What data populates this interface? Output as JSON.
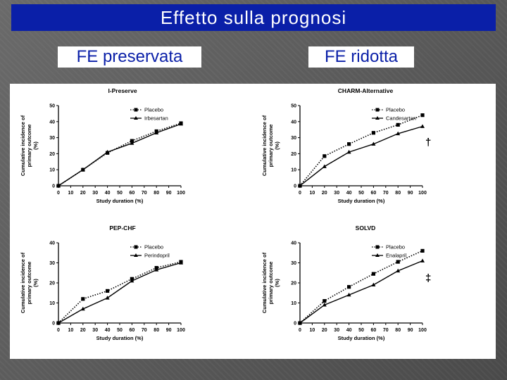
{
  "slide": {
    "title": "Effetto sulla prognosi",
    "left_label": "FE preservata",
    "right_label": "FE ridotta"
  },
  "colors": {
    "title_bg": "#0a1fa8",
    "title_text": "#ffffff",
    "label_text": "#0a1fa8"
  },
  "chart_data": [
    {
      "type": "line",
      "title": "I-Preserve",
      "xlabel": "Study duration (%)",
      "ylabel": [
        "Cumulative incidence of",
        "primary outcome",
        "(%)"
      ],
      "x": [
        0,
        20,
        40,
        60,
        80,
        100
      ],
      "x_ticks": [
        "0",
        "10",
        "20",
        "30",
        "40",
        "50",
        "60",
        "70",
        "80",
        "90",
        "100"
      ],
      "y_ticks": [
        "0",
        "10",
        "20",
        "30",
        "40",
        "50"
      ],
      "xlim": [
        0,
        100
      ],
      "ylim": [
        0,
        50
      ],
      "series": [
        {
          "name": "Placebo",
          "marker": "square",
          "dash": "dotted",
          "values": [
            0,
            10,
            20.5,
            28,
            34,
            39
          ]
        },
        {
          "name": "Irbesartan",
          "marker": "triangle",
          "dash": "solid",
          "values": [
            0,
            10,
            21,
            26.5,
            33,
            38.5
          ]
        }
      ],
      "legend": "top-right",
      "symbol": ""
    },
    {
      "type": "line",
      "title": "CHARM-Alternative",
      "xlabel": "Study duration (%)",
      "ylabel": [
        "Cumulative incidence of",
        "primary outcome",
        "(%)"
      ],
      "x": [
        0,
        20,
        40,
        60,
        80,
        100
      ],
      "x_ticks": [
        "0",
        "10",
        "20",
        "30",
        "40",
        "50",
        "60",
        "70",
        "80",
        "90",
        "100"
      ],
      "y_ticks": [
        "0",
        "10",
        "20",
        "30",
        "40",
        "50"
      ],
      "xlim": [
        0,
        100
      ],
      "ylim": [
        0,
        50
      ],
      "series": [
        {
          "name": "Placebo",
          "marker": "square",
          "dash": "dotted",
          "values": [
            0,
            18.5,
            26,
            33,
            38,
            44
          ]
        },
        {
          "name": "Candesartan",
          "marker": "triangle",
          "dash": "solid",
          "values": [
            0,
            12,
            21,
            26,
            32.5,
            37
          ]
        }
      ],
      "legend": "top-right",
      "symbol": "†"
    },
    {
      "type": "line",
      "title": "PEP-CHF",
      "xlabel": "Study duration (%)",
      "ylabel": [
        "Cumulative incidence of",
        "primary outcome",
        "(%)"
      ],
      "x": [
        0,
        20,
        40,
        60,
        80,
        100
      ],
      "x_ticks": [
        "0",
        "10",
        "20",
        "30",
        "40",
        "50",
        "60",
        "70",
        "80",
        "90",
        "100"
      ],
      "y_ticks": [
        "0",
        "10",
        "20",
        "30",
        "40"
      ],
      "xlim": [
        0,
        100
      ],
      "ylim": [
        0,
        40
      ],
      "series": [
        {
          "name": "Placebo",
          "marker": "square",
          "dash": "dotted",
          "values": [
            0,
            12,
            16,
            22,
            27.5,
            30.5
          ]
        },
        {
          "name": "Perindopril",
          "marker": "triangle",
          "dash": "solid",
          "values": [
            0,
            7,
            12.5,
            21,
            26.5,
            30
          ]
        }
      ],
      "legend": "top-right",
      "symbol": ""
    },
    {
      "type": "line",
      "title": "SOLVD",
      "xlabel": "Study duration (%)",
      "ylabel": [
        "Cumulative incidence of",
        "primary outcome",
        "(%)"
      ],
      "x": [
        0,
        20,
        40,
        60,
        80,
        100
      ],
      "x_ticks": [
        "0",
        "10",
        "20",
        "30",
        "40",
        "50",
        "60",
        "70",
        "80",
        "90",
        "100"
      ],
      "y_ticks": [
        "0",
        "10",
        "20",
        "30",
        "40"
      ],
      "xlim": [
        0,
        100
      ],
      "ylim": [
        0,
        40
      ],
      "series": [
        {
          "name": "Placebo",
          "marker": "square",
          "dash": "dotted",
          "values": [
            0,
            11,
            18,
            24.5,
            30.5,
            36
          ]
        },
        {
          "name": "Enalapril",
          "marker": "triangle",
          "dash": "solid",
          "values": [
            0,
            9,
            14,
            19,
            26,
            31
          ]
        }
      ],
      "legend": "top-right",
      "symbol": "‡"
    }
  ]
}
